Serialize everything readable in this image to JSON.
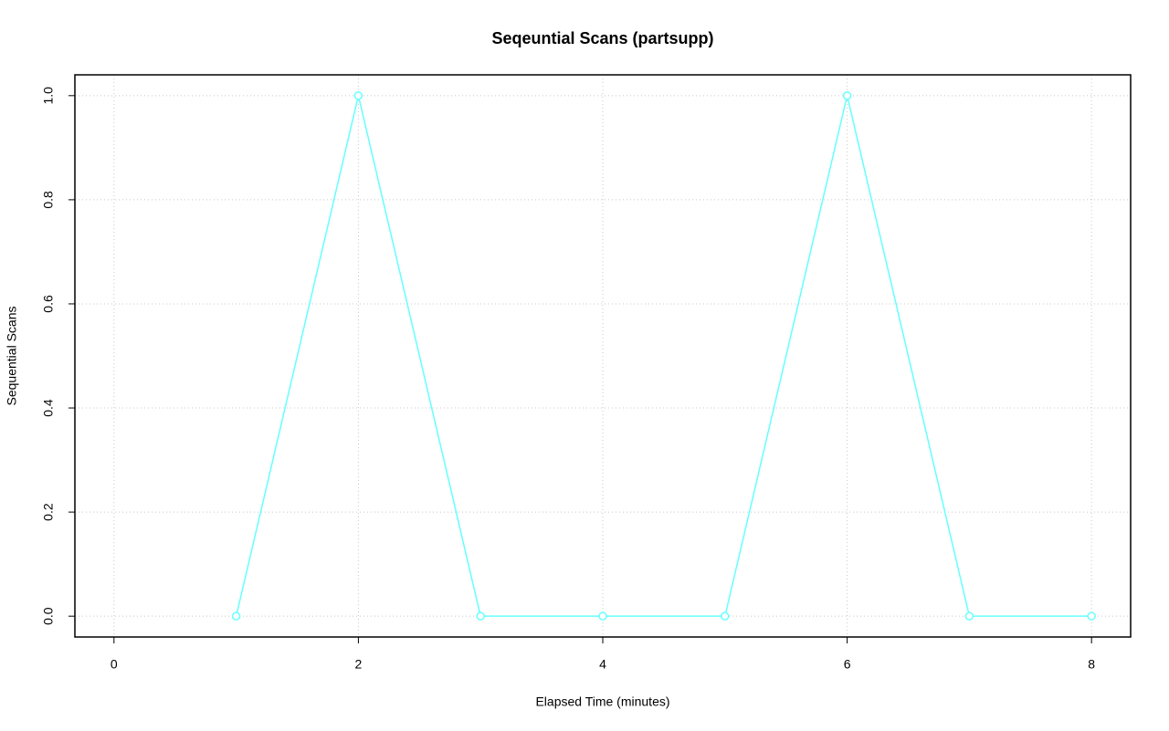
{
  "chart_data": {
    "type": "line",
    "title": "Seqeuntial Scans (partsupp)",
    "x_label": "Elapsed Time (minutes)",
    "y_label": "Sequential Scans",
    "x": [
      1,
      2,
      3,
      4,
      5,
      6,
      7,
      8
    ],
    "series": [
      {
        "name": "partsupp",
        "color": "#66ffff",
        "values": [
          0,
          1,
          0,
          0,
          0,
          1,
          0,
          0
        ]
      }
    ],
    "xlim": [
      -0.32,
      8.32
    ],
    "ylim": [
      -0.04,
      1.04
    ],
    "xticks": [
      0,
      2,
      4,
      6,
      8
    ],
    "yticks": [
      {
        "value": 0,
        "label": "0.0"
      },
      {
        "value": 0.2,
        "label": "0.2"
      },
      {
        "value": 0.4,
        "label": "0.4"
      },
      {
        "value": 0.6,
        "label": "0.6"
      },
      {
        "value": 0.8,
        "label": "0.8"
      },
      {
        "value": 1,
        "label": "1.0"
      }
    ],
    "grid": true,
    "markers": true
  }
}
